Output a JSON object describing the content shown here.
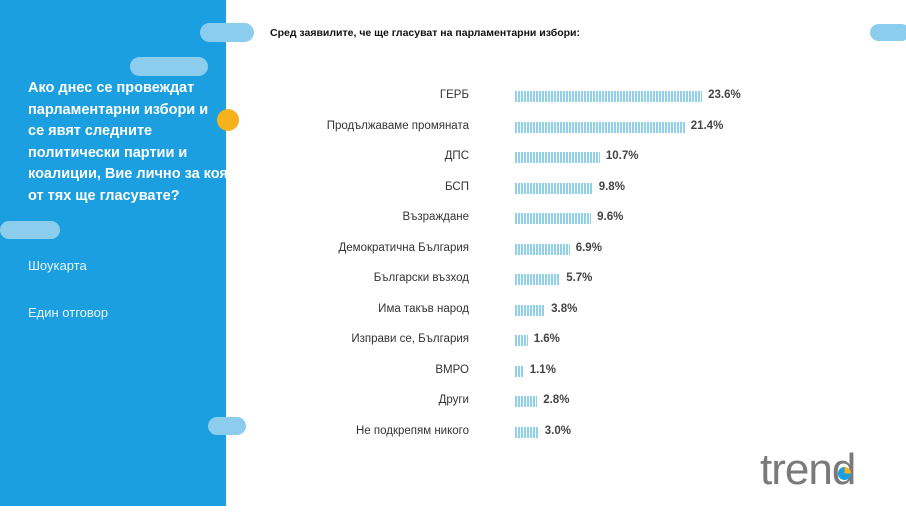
{
  "slide": {
    "question": "Ако днес се провеждат парламентарни избори и се явят следните политически партии и коалиции, Вие лично за коя от тях ще гласувате?",
    "method": "Шоукарта",
    "answer_type": "Един отговор",
    "logo": "trend"
  },
  "chart_data": {
    "type": "bar",
    "orientation": "horizontal",
    "title": "Сред заявилите, че ще гласуват на парламентарни избори:",
    "categories": [
      "ГЕРБ",
      "Продължаваме промяната",
      "ДПС",
      "БСП",
      "Възраждане",
      "Демократична България",
      "Български възход",
      "Има такъв народ",
      "Изправи се, България",
      "ВМРО",
      "Други",
      "Не подкрепям никого"
    ],
    "values": [
      23.6,
      21.4,
      10.7,
      9.8,
      9.6,
      6.9,
      5.7,
      3.8,
      1.6,
      1.1,
      2.8,
      3.0
    ],
    "value_labels": [
      "23.6%",
      "21.4%",
      "10.7%",
      "9.8%",
      "9.6%",
      "6.9%",
      "5.7%",
      "3.8%",
      "1.6%",
      "1.1%",
      "2.8%",
      "3.0%"
    ],
    "unit": "%",
    "colors": {
      "bar": "#8fd0ea",
      "panel": "#1b9fe0",
      "accent": "#f6b21a"
    }
  }
}
